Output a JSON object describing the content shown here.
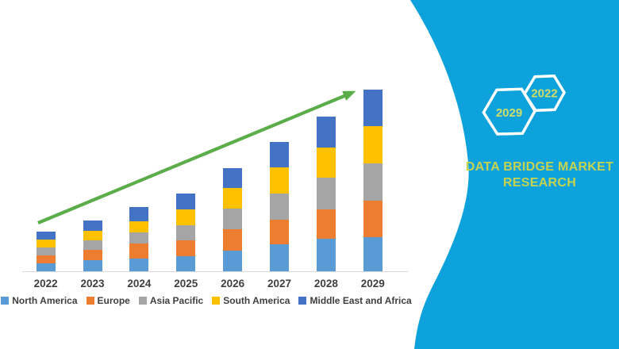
{
  "canvas": {
    "background": "#FFFFFF"
  },
  "chart_data": {
    "type": "bar",
    "stacked": true,
    "title": "",
    "xlabel": "",
    "ylabel": "",
    "categories": [
      "2022",
      "2023",
      "2024",
      "2025",
      "2026",
      "2027",
      "2028",
      "2029"
    ],
    "series": [
      {
        "name": "North America",
        "color": "#5B9BD5",
        "values": [
          10.3,
          13.7,
          16.0,
          19.3,
          26.0,
          33.7,
          41.0,
          43.3
        ]
      },
      {
        "name": "Europe",
        "color": "#ED7D31",
        "values": [
          9.4,
          13.0,
          19.0,
          20.0,
          26.7,
          31.3,
          37.3,
          46.0
        ]
      },
      {
        "name": "Asia Pacific",
        "color": "#A5A5A5",
        "values": [
          10.0,
          12.6,
          14.3,
          18.4,
          26.6,
          33.3,
          40.0,
          46.7
        ]
      },
      {
        "name": "South America",
        "color": "#FFC000",
        "values": [
          10.0,
          11.7,
          13.4,
          20.0,
          25.7,
          32.7,
          37.7,
          46.7
        ]
      },
      {
        "name": "Middle East and Africa",
        "color": "#4472C4",
        "values": [
          10.6,
          13.3,
          18.3,
          20.0,
          25.0,
          32.3,
          39.3,
          46.0
        ]
      }
    ],
    "value_axis": {
      "visible": false,
      "note": "no numeric value axis shown; values are relative units read from segment heights"
    },
    "axis_line_color": "#D9D9D9",
    "category_label_color": "#3F3F3F",
    "legend": {
      "position": "bottom"
    },
    "trend_arrow": {
      "present": true,
      "color": "#5BAD49",
      "direction": "up-right"
    }
  },
  "right_panel": {
    "background_color": "#0EA2DC",
    "hexagon_outline_color": "#FFFFFF",
    "hexagon_text_color": "#D2DD67",
    "hexagons": [
      {
        "label": "2029"
      },
      {
        "label": "2022"
      }
    ],
    "brand_line1": "DATA BRIDGE MARKET",
    "brand_line2": "RESEARCH",
    "brand_text_color": "#C6D350"
  }
}
